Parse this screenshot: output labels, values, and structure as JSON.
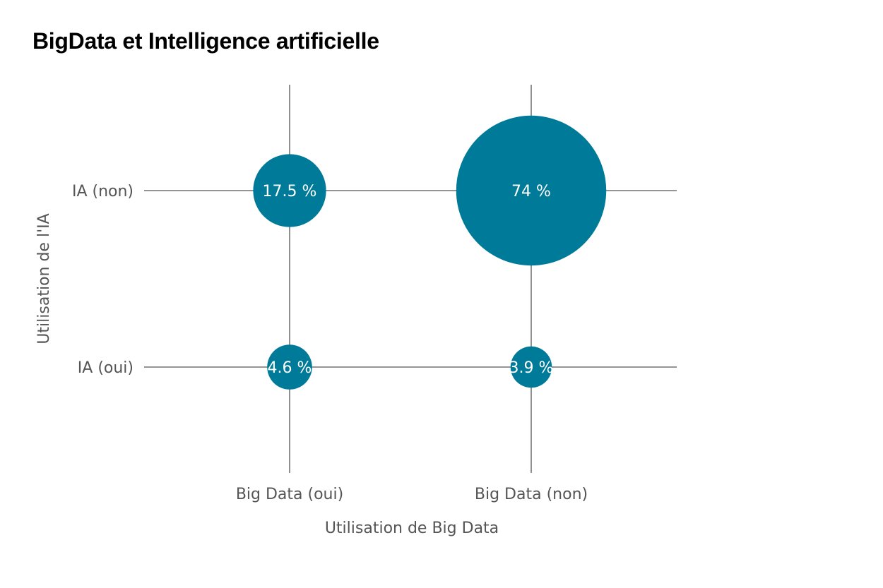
{
  "chart_data": {
    "type": "bubble",
    "title": "BigData et Intelligence artificielle",
    "xlabel": "Utilisation de Big Data",
    "ylabel": "Utilisation de l'IA",
    "x_categories": [
      "Big Data (oui)",
      "Big Data (non)"
    ],
    "y_categories": [
      "IA (non)",
      "IA (oui)"
    ],
    "points": [
      {
        "x": "Big Data (oui)",
        "y": "IA (non)",
        "value": 17.5,
        "label": "17.5 %"
      },
      {
        "x": "Big Data (non)",
        "y": "IA (non)",
        "value": 74,
        "label": "74 %"
      },
      {
        "x": "Big Data (oui)",
        "y": "IA (oui)",
        "value": 4.6,
        "label": "4.6 %"
      },
      {
        "x": "Big Data (non)",
        "y": "IA (oui)",
        "value": 3.9,
        "label": "3.9 %"
      }
    ],
    "color": "#007a99",
    "grid": true,
    "legend": "none"
  }
}
